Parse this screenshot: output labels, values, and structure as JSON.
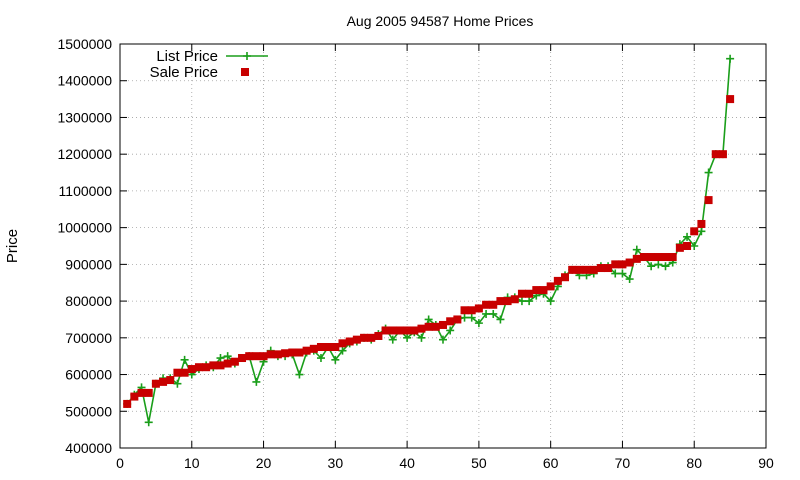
{
  "chart_data": {
    "type": "line",
    "title": "Aug 2005 94587 Home Prices",
    "xlabel": "",
    "ylabel": "Price",
    "xlim": [
      0,
      90
    ],
    "ylim": [
      400000,
      1500000
    ],
    "x_ticks": [
      "0",
      "10",
      "20",
      "30",
      "40",
      "50",
      "60",
      "70",
      "80",
      "90"
    ],
    "y_ticks": [
      "400000",
      "500000",
      "600000",
      "700000",
      "800000",
      "900000",
      "1000000",
      "1100000",
      "1200000",
      "1300000",
      "1400000",
      "1500000"
    ],
    "grid": true,
    "legend_position": "top-left",
    "series": [
      {
        "name": "List Price",
        "style": "line+plus",
        "color": "#1a9e1a",
        "x": [
          1,
          2,
          3,
          4,
          5,
          6,
          7,
          8,
          9,
          10,
          11,
          12,
          13,
          14,
          15,
          16,
          17,
          18,
          19,
          20,
          21,
          22,
          23,
          24,
          25,
          26,
          27,
          28,
          29,
          30,
          31,
          32,
          33,
          34,
          35,
          36,
          37,
          38,
          39,
          40,
          41,
          42,
          43,
          44,
          45,
          46,
          47,
          48,
          49,
          50,
          51,
          52,
          53,
          54,
          55,
          56,
          57,
          58,
          59,
          60,
          61,
          62,
          63,
          64,
          65,
          66,
          67,
          68,
          69,
          70,
          71,
          72,
          73,
          74,
          75,
          76,
          77,
          78,
          79,
          80,
          81,
          82,
          83,
          84,
          85
        ],
        "values": [
          520000,
          545000,
          565000,
          470000,
          575000,
          590000,
          590000,
          575000,
          640000,
          600000,
          615000,
          625000,
          620000,
          645000,
          650000,
          630000,
          645000,
          650000,
          580000,
          635000,
          665000,
          650000,
          650000,
          655000,
          600000,
          660000,
          665000,
          645000,
          675000,
          640000,
          665000,
          685000,
          690000,
          700000,
          695000,
          710000,
          725000,
          695000,
          720000,
          700000,
          715000,
          700000,
          750000,
          735000,
          695000,
          720000,
          750000,
          755000,
          755000,
          740000,
          765000,
          765000,
          750000,
          810000,
          810000,
          800000,
          800000,
          815000,
          820000,
          800000,
          840000,
          870000,
          885000,
          870000,
          870000,
          875000,
          895000,
          895000,
          875000,
          875000,
          860000,
          940000,
          920000,
          895000,
          900000,
          895000,
          905000,
          955000,
          975000,
          950000,
          990000,
          1150000,
          1200000,
          1200000,
          1460000
        ]
      },
      {
        "name": "Sale Price",
        "style": "square",
        "color": "#c80000",
        "x": [
          1,
          2,
          3,
          4,
          5,
          6,
          7,
          8,
          9,
          10,
          11,
          12,
          13,
          14,
          15,
          16,
          17,
          18,
          19,
          20,
          21,
          22,
          23,
          24,
          25,
          26,
          27,
          28,
          29,
          30,
          31,
          32,
          33,
          34,
          35,
          36,
          37,
          38,
          39,
          40,
          41,
          42,
          43,
          44,
          45,
          46,
          47,
          48,
          49,
          50,
          51,
          52,
          53,
          54,
          55,
          56,
          57,
          58,
          59,
          60,
          61,
          62,
          63,
          64,
          65,
          66,
          67,
          68,
          69,
          70,
          71,
          72,
          73,
          74,
          75,
          76,
          77,
          78,
          79,
          80,
          81,
          82,
          83,
          84,
          85
        ],
        "values": [
          520000,
          540000,
          550000,
          550000,
          575000,
          580000,
          585000,
          605000,
          605000,
          615000,
          620000,
          620000,
          625000,
          625000,
          630000,
          635000,
          645000,
          650000,
          650000,
          650000,
          655000,
          655000,
          658000,
          660000,
          660000,
          665000,
          670000,
          675000,
          675000,
          675000,
          685000,
          690000,
          695000,
          700000,
          700000,
          705000,
          720000,
          720000,
          720000,
          720000,
          720000,
          725000,
          730000,
          730000,
          735000,
          745000,
          750000,
          775000,
          775000,
          780000,
          790000,
          790000,
          800000,
          800000,
          805000,
          820000,
          820000,
          830000,
          830000,
          840000,
          855000,
          865000,
          885000,
          885000,
          885000,
          885000,
          890000,
          890000,
          900000,
          900000,
          905000,
          915000,
          920000,
          920000,
          920000,
          920000,
          920000,
          945000,
          950000,
          990000,
          1010000,
          1075000,
          1200000,
          1200000,
          1350000
        ]
      }
    ]
  }
}
